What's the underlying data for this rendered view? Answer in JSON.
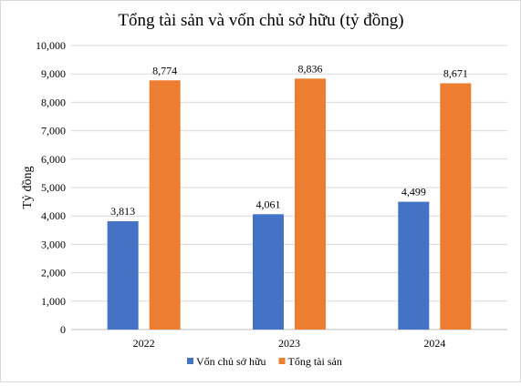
{
  "chart_data": {
    "type": "bar",
    "title": "Tổng tài sản và vốn chủ sở hữu (tỷ đồng)",
    "ylabel": "Tỷ đồng",
    "xlabel": "",
    "categories": [
      "2022",
      "2023",
      "2024"
    ],
    "ylim": [
      0,
      10000
    ],
    "yticks": [
      0,
      1000,
      2000,
      3000,
      4000,
      5000,
      6000,
      7000,
      8000,
      9000,
      10000
    ],
    "ytick_labels": [
      "0",
      "1,000",
      "2,000",
      "3,000",
      "4,000",
      "5,000",
      "6,000",
      "7,000",
      "8,000",
      "9,000",
      "10,000"
    ],
    "grid": true,
    "legend_position": "bottom",
    "series": [
      {
        "name": "Vốn chủ sở hữu",
        "color": "#4472C4",
        "values": [
          3813,
          4061,
          4499
        ],
        "labels": [
          "3,813",
          "4,061",
          "4,499"
        ]
      },
      {
        "name": "Tổng tài sản",
        "color": "#ED7D31",
        "values": [
          8774,
          8836,
          8671
        ],
        "labels": [
          "8,774",
          "8,836",
          "8,671"
        ]
      }
    ]
  }
}
